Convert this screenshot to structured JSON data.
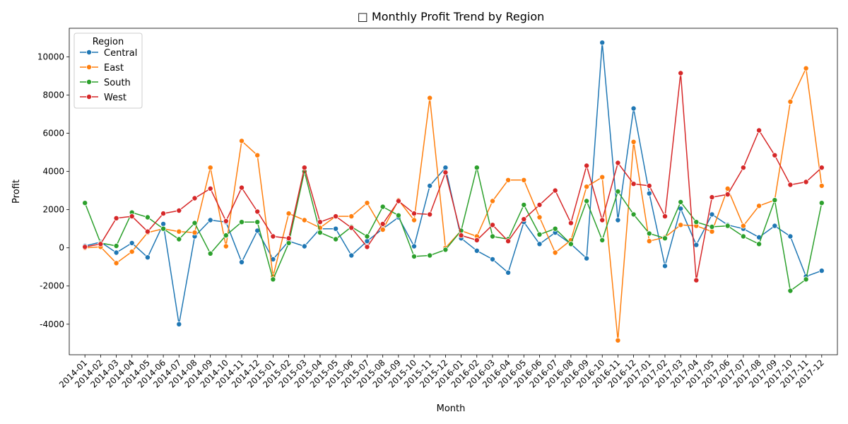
{
  "chart_data": {
    "type": "line",
    "title": "□ Monthly Profit Trend by Region",
    "xlabel": "Month",
    "ylabel": "Profit",
    "ylim": [
      -5600,
      11500
    ],
    "yticks": [
      -4000,
      -2000,
      0,
      2000,
      4000,
      6000,
      8000,
      10000
    ],
    "legend": {
      "title": "Region",
      "placement": "top-left"
    },
    "grid": false,
    "categories": [
      "2014-01",
      "2014-02",
      "2014-03",
      "2014-04",
      "2014-05",
      "2014-06",
      "2014-07",
      "2014-08",
      "2014-09",
      "2014-10",
      "2014-11",
      "2014-12",
      "2015-01",
      "2015-02",
      "2015-03",
      "2015-04",
      "2015-05",
      "2015-06",
      "2015-07",
      "2015-08",
      "2015-09",
      "2015-10",
      "2015-11",
      "2015-12",
      "2016-01",
      "2016-02",
      "2016-03",
      "2016-04",
      "2016-05",
      "2016-06",
      "2016-07",
      "2016-08",
      "2016-09",
      "2016-10",
      "2016-11",
      "2016-12",
      "2017-01",
      "2017-02",
      "2017-03",
      "2017-04",
      "2017-05",
      "2017-06",
      "2017-07",
      "2017-08",
      "2017-09",
      "2017-10",
      "2017-11",
      "2017-12"
    ],
    "series": [
      {
        "name": "Central",
        "color": "#1f77b4",
        "values": [
          100,
          300,
          -250,
          250,
          -500,
          1250,
          -4000,
          600,
          1450,
          1350,
          -750,
          900,
          -600,
          350,
          80,
          1000,
          1000,
          -400,
          350,
          1000,
          1600,
          80,
          3250,
          4200,
          500,
          -150,
          -600,
          -1300,
          1350,
          200,
          800,
          200,
          -550,
          10750,
          1450,
          7300,
          2850,
          -950,
          2050,
          150,
          1750,
          1200,
          1000,
          550,
          1150,
          600,
          -1500,
          -1200
        ]
      },
      {
        "name": "East",
        "color": "#ff7f0e",
        "values": [
          0,
          50,
          -800,
          -200,
          800,
          1000,
          850,
          800,
          4200,
          80,
          5600,
          4850,
          -1500,
          1800,
          1450,
          1050,
          1650,
          1650,
          2350,
          950,
          2500,
          1450,
          7850,
          0,
          900,
          600,
          2450,
          3550,
          3550,
          1600,
          -250,
          400,
          3200,
          3700,
          -4850,
          5550,
          350,
          550,
          1200,
          1150,
          850,
          3100,
          1150,
          2200,
          2500,
          7650,
          9400,
          3250
        ]
      },
      {
        "name": "South",
        "color": "#2ca02c",
        "values": [
          2350,
          250,
          100,
          1850,
          1600,
          1000,
          450,
          1300,
          -300,
          650,
          1350,
          1350,
          -1650,
          250,
          4000,
          800,
          450,
          1100,
          600,
          2150,
          1700,
          -450,
          -400,
          -100,
          900,
          4200,
          600,
          450,
          2250,
          700,
          1000,
          200,
          2450,
          400,
          2950,
          1750,
          750,
          500,
          2400,
          1350,
          1100,
          1150,
          600,
          200,
          2500,
          -2250,
          -1650,
          2350
        ]
      },
      {
        "name": "West",
        "color": "#d62728",
        "values": [
          50,
          200,
          1550,
          1650,
          850,
          1800,
          1950,
          2600,
          3100,
          1400,
          3150,
          1900,
          600,
          500,
          4200,
          1350,
          1650,
          1050,
          50,
          1250,
          2450,
          1800,
          1750,
          3950,
          650,
          400,
          1200,
          350,
          1500,
          2250,
          3000,
          1300,
          4300,
          1450,
          4450,
          3350,
          3250,
          1650,
          9150,
          -1700,
          2650,
          2800,
          4200,
          6150,
          4850,
          3300,
          3450,
          4200
        ]
      }
    ]
  }
}
